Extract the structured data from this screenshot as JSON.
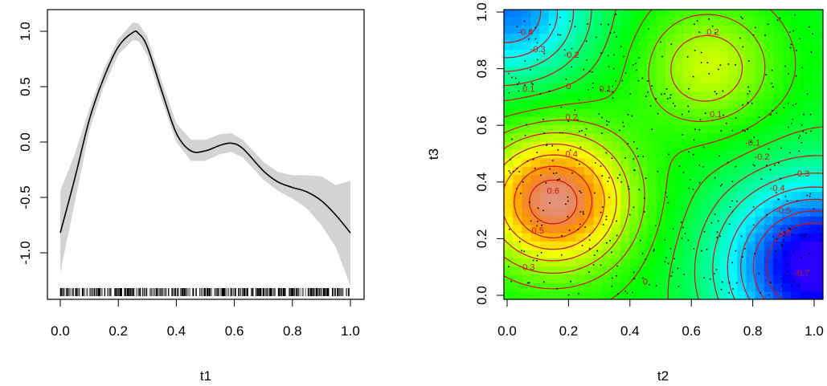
{
  "chart_data": [
    {
      "type": "line",
      "title": "",
      "xlabel": "t1",
      "ylabel": "",
      "xlim": [
        0,
        1
      ],
      "ylim": [
        -1.3,
        1.1
      ],
      "xticks": [
        "0.0",
        "0.2",
        "0.4",
        "0.6",
        "0.8",
        "1.0"
      ],
      "yticks": [
        "-1.0",
        "-0.5",
        "0.0",
        "0.5",
        "1.0"
      ],
      "series": [
        {
          "x": [
            0.0,
            0.05,
            0.1,
            0.15,
            0.2,
            0.25,
            0.27,
            0.3,
            0.35,
            0.4,
            0.45,
            0.5,
            0.55,
            0.59,
            0.63,
            0.7,
            0.75,
            0.8,
            0.85,
            0.9,
            0.95,
            1.0
          ],
          "y": [
            -0.82,
            -0.33,
            0.2,
            0.58,
            0.86,
            0.99,
            0.98,
            0.86,
            0.46,
            0.08,
            -0.08,
            -0.08,
            -0.03,
            -0.01,
            -0.06,
            -0.26,
            -0.36,
            -0.41,
            -0.45,
            -0.53,
            -0.66,
            -0.82
          ],
          "lower": [
            -1.18,
            -0.55,
            0.1,
            0.5,
            0.79,
            0.92,
            0.91,
            0.78,
            0.38,
            0.0,
            -0.17,
            -0.17,
            -0.11,
            -0.09,
            -0.14,
            -0.34,
            -0.44,
            -0.51,
            -0.6,
            -0.75,
            -0.95,
            -1.3
          ],
          "upper": [
            -0.44,
            -0.11,
            0.3,
            0.66,
            0.93,
            1.08,
            1.07,
            0.95,
            0.55,
            0.17,
            0.02,
            0.02,
            0.07,
            0.08,
            0.02,
            -0.18,
            -0.27,
            -0.3,
            -0.3,
            -0.31,
            -0.39,
            -0.35
          ]
        }
      ],
      "band_color": "#d3d3d3",
      "line_color": "#000000",
      "rug": true
    },
    {
      "type": "heatmap",
      "title": "",
      "xlabel": "t2",
      "ylabel": "t3",
      "xlim": [
        0,
        1
      ],
      "ylim": [
        0,
        1
      ],
      "xticks": [
        "0.0",
        "0.2",
        "0.4",
        "0.6",
        "0.8",
        "1.0"
      ],
      "yticks": [
        "0.0",
        "0.2",
        "0.4",
        "0.6",
        "0.8",
        "1.0"
      ],
      "contour_color": "#d01010",
      "contour_labels": [
        {
          "text": "0.6",
          "x": 0.15,
          "y": 0.37
        },
        {
          "text": "0.5",
          "x": 0.1,
          "y": 0.23
        },
        {
          "text": "0.4",
          "x": 0.21,
          "y": 0.5
        },
        {
          "text": "0.3",
          "x": 0.07,
          "y": 0.1
        },
        {
          "text": "0.2",
          "x": 0.21,
          "y": 0.63
        },
        {
          "text": "0.2",
          "x": 0.67,
          "y": 0.93
        },
        {
          "text": "0.1",
          "x": 0.32,
          "y": 0.73
        },
        {
          "text": "0.1",
          "x": 0.07,
          "y": 0.73
        },
        {
          "text": "0.1",
          "x": 0.68,
          "y": 0.64
        },
        {
          "text": "0",
          "x": 0.2,
          "y": 0.74
        },
        {
          "text": "0",
          "x": 0.45,
          "y": 0.05
        },
        {
          "text": "-0.1",
          "x": 0.8,
          "y": 0.54
        },
        {
          "text": "-0.2",
          "x": 0.21,
          "y": 0.85
        },
        {
          "text": "-0.2",
          "x": 0.83,
          "y": 0.49
        },
        {
          "text": "-0.3",
          "x": 0.1,
          "y": 0.87
        },
        {
          "text": "-0.3",
          "x": 0.96,
          "y": 0.43
        },
        {
          "text": "-0.4",
          "x": 0.06,
          "y": 0.93
        },
        {
          "text": "-0.4",
          "x": 0.88,
          "y": 0.38
        },
        {
          "text": "-0.5",
          "x": 0.9,
          "y": 0.3
        },
        {
          "text": "-0.6",
          "x": 0.9,
          "y": 0.22
        },
        {
          "text": "-0.7",
          "x": 0.96,
          "y": 0.08
        }
      ],
      "points": true
    }
  ]
}
